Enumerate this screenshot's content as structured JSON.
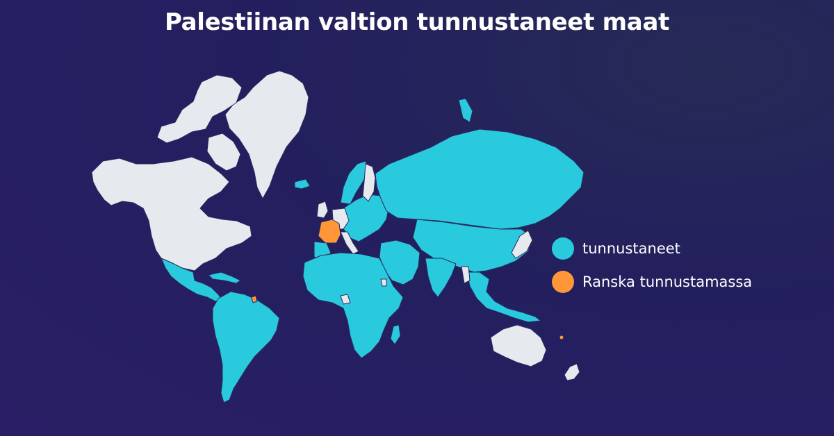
{
  "title": "Palestiinan valtion tunnustaneet maat",
  "colors": {
    "recognized": "#29c9de",
    "in_progress": "#ff9638",
    "not_recognized": "#e6e9ed",
    "border": "#2a2860"
  },
  "legend": [
    {
      "label": "tunnustaneet",
      "color": "#29c9de"
    },
    {
      "label": "Ranska tunnustamassa",
      "color": "#ff9638"
    }
  ],
  "map": {
    "recognized_regions": [
      "Russia",
      "China",
      "India",
      "Middle East",
      "Africa",
      "Latin America",
      "Eastern Europe",
      "Southeast Asia",
      "Central Asia"
    ],
    "in_progress_regions": [
      "France"
    ],
    "not_recognized_regions": [
      "United States",
      "Canada",
      "Greenland",
      "Australia",
      "New Zealand",
      "Japan",
      "Germany",
      "United Kingdom",
      "Italy",
      "Finland"
    ]
  }
}
